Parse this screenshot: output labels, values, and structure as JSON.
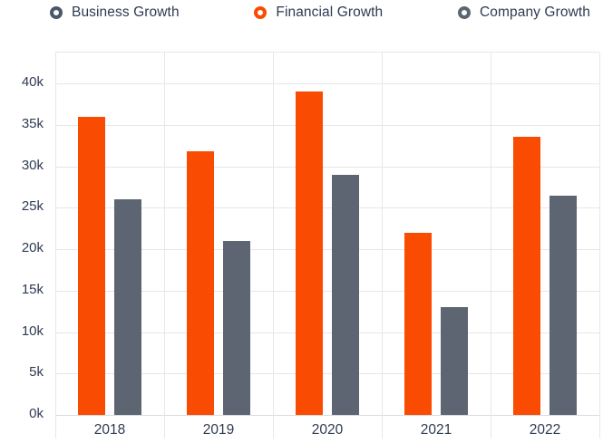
{
  "chart_data": {
    "type": "bar",
    "title": "",
    "categories": [
      "2018",
      "2019",
      "2020",
      "2021",
      "2022"
    ],
    "series": [
      {
        "name": "Business Growth",
        "color": "#4a5869",
        "legend_only": true,
        "values": []
      },
      {
        "name": "Financial Growth",
        "color": "#fa4b02",
        "values": [
          36000,
          31800,
          39000,
          22000,
          33500
        ]
      },
      {
        "name": "Company Growth",
        "color": "#5c6571",
        "values": [
          26000,
          21000,
          29000,
          13000,
          26500
        ]
      }
    ],
    "y_ticks": [
      {
        "value": 40000,
        "label": "40k"
      },
      {
        "value": 35000,
        "label": "35k"
      },
      {
        "value": 30000,
        "label": "30k"
      },
      {
        "value": 25000,
        "label": "25k"
      },
      {
        "value": 20000,
        "label": "20k"
      },
      {
        "value": 15000,
        "label": "15k"
      },
      {
        "value": 10000,
        "label": "10k"
      },
      {
        "value": 5000,
        "label": "5k"
      },
      {
        "value": 0,
        "label": "0k"
      }
    ],
    "ylim": [
      0,
      43700
    ],
    "grid": true,
    "legend_position": "top"
  },
  "colors": {
    "text": "#2e3b52",
    "grid": "#e7e7e7",
    "axis_line": "#d8dbdf",
    "background": "#ffffff"
  }
}
